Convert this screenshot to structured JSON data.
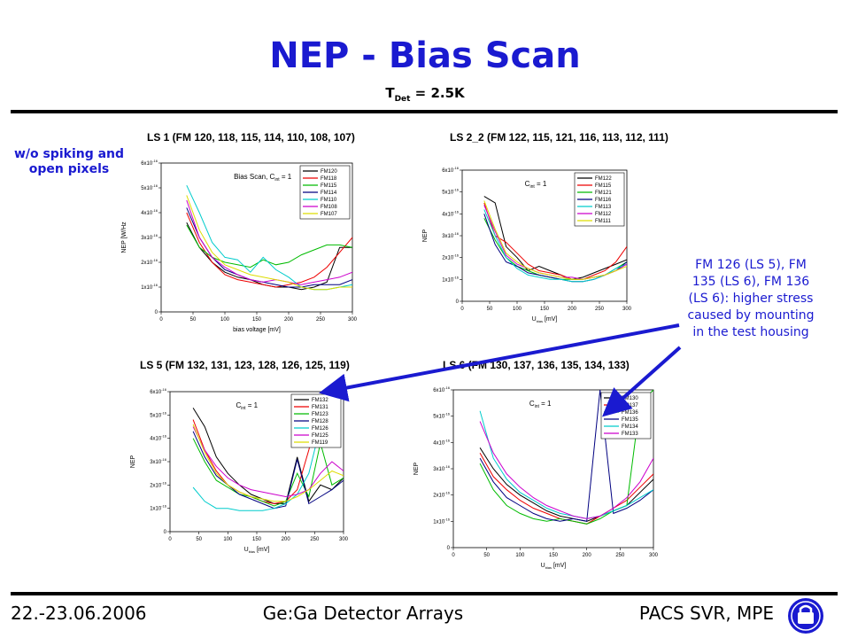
{
  "slide": {
    "title": "NEP - Bias Scan",
    "subtitle_main": "T",
    "subtitle_sub": "Det",
    "subtitle_rest": " = 2.5K",
    "left_note": "w/o spiking and open pixels",
    "right_note": "FM 126 (LS 5), FM 135 (LS 6), FM 136 (LS 6): higher stress caused by mounting in the test housing",
    "footer_date": "22.-23.06.2006",
    "footer_center": "Ge:Ga Detector Arrays",
    "footer_right": "PACS SVR, MPE",
    "colors": {
      "title": "#1a1ad0",
      "note": "#1a1ad0",
      "arrow": "#1a1ad0"
    }
  },
  "chart_data": [
    {
      "type": "line",
      "panel_title": "LS 1 (FM 120, 118, 115, 114, 110, 108, 107)",
      "title": "Bias Scan, C",
      "title_sub": "int",
      "title_rest": " = 1",
      "xlabel": "bias voltage [mV]",
      "ylabel": "NEP [W/Hz",
      "xlim": [
        0,
        300
      ],
      "ylim": [
        0,
        6
      ],
      "x_ticks": [
        "0",
        "50",
        "100",
        "150",
        "200",
        "250",
        "300"
      ],
      "y_ticks": [
        "0",
        "1x10",
        "2x10",
        "3x10",
        "4x10",
        "5x10",
        "6x10"
      ],
      "y_tick_exp": "-16",
      "legend_position": "top-right",
      "x": [
        40,
        60,
        80,
        100,
        120,
        140,
        160,
        180,
        200,
        220,
        240,
        260,
        280,
        300
      ],
      "series": [
        {
          "name": "FM120",
          "color": "#000000",
          "values": [
            3.6,
            2.6,
            2.0,
            1.6,
            1.4,
            1.3,
            1.1,
            1.0,
            1.0,
            0.9,
            1.0,
            1.2,
            2.6,
            2.6
          ]
        },
        {
          "name": "FM118",
          "color": "#ee0000",
          "values": [
            4.0,
            2.8,
            2.0,
            1.5,
            1.3,
            1.2,
            1.1,
            1.0,
            1.1,
            1.2,
            1.4,
            1.8,
            2.4,
            3.0
          ]
        },
        {
          "name": "FM115",
          "color": "#00bb00",
          "values": [
            3.5,
            2.6,
            2.2,
            2.0,
            1.9,
            1.8,
            2.1,
            1.9,
            2.0,
            2.3,
            2.5,
            2.7,
            2.7,
            2.6
          ]
        },
        {
          "name": "FM114",
          "color": "#000080",
          "values": [
            4.2,
            3.0,
            2.2,
            1.7,
            1.5,
            1.3,
            1.2,
            1.1,
            1.0,
            1.0,
            1.1,
            1.1,
            1.1,
            1.3
          ]
        },
        {
          "name": "FM110",
          "color": "#00cccc",
          "values": [
            5.1,
            4.0,
            2.8,
            2.2,
            2.1,
            1.6,
            2.2,
            1.7,
            1.4,
            1.0,
            0.9,
            0.9,
            1.0,
            1.1
          ]
        },
        {
          "name": "FM108",
          "color": "#cc00cc",
          "values": [
            4.5,
            3.0,
            2.2,
            1.8,
            1.5,
            1.3,
            1.2,
            1.3,
            1.2,
            1.1,
            1.2,
            1.3,
            1.4,
            1.6
          ]
        },
        {
          "name": "FM107",
          "color": "#dddd00",
          "values": [
            4.7,
            3.3,
            2.4,
            1.9,
            1.7,
            1.5,
            1.4,
            1.3,
            1.2,
            1.0,
            0.9,
            0.9,
            1.0,
            1.0
          ]
        }
      ]
    },
    {
      "type": "line",
      "panel_title": "LS 2_2 (FM 122, 115, 121, 116, 113, 112, 111)",
      "title": "C",
      "title_sub": "int",
      "title_rest": " = 1",
      "xlabel": "U",
      "xlabel_sub": "bias",
      "xlabel_rest": " [mV]",
      "ylabel": "NEP",
      "xlim": [
        0,
        300
      ],
      "ylim": [
        0,
        6
      ],
      "x_ticks": [
        "0",
        "50",
        "100",
        "150",
        "200",
        "250",
        "300"
      ],
      "y_ticks": [
        "0",
        "1x10",
        "2x10",
        "3x10",
        "4x10",
        "5x10",
        "6x10"
      ],
      "y_tick_exp": "-16",
      "legend_position": "top-right",
      "x": [
        40,
        60,
        80,
        100,
        120,
        140,
        160,
        180,
        200,
        220,
        240,
        260,
        280,
        300
      ],
      "series": [
        {
          "name": "FM122",
          "color": "#000000",
          "values": [
            4.8,
            4.5,
            2.5,
            2.0,
            1.4,
            1.6,
            1.4,
            1.2,
            1.0,
            1.1,
            1.3,
            1.5,
            1.7,
            1.9
          ]
        },
        {
          "name": "FM115",
          "color": "#ee0000",
          "values": [
            4.5,
            3.0,
            2.7,
            2.2,
            1.7,
            1.4,
            1.3,
            1.2,
            1.0,
            1.0,
            1.2,
            1.4,
            1.8,
            2.5
          ]
        },
        {
          "name": "FM121",
          "color": "#00bb00",
          "values": [
            3.8,
            2.8,
            2.0,
            1.6,
            1.4,
            1.2,
            1.1,
            1.0,
            1.0,
            1.0,
            1.1,
            1.2,
            1.5,
            1.8
          ]
        },
        {
          "name": "FM116",
          "color": "#000080",
          "values": [
            4.0,
            2.6,
            1.8,
            1.6,
            1.3,
            1.2,
            1.1,
            1.0,
            0.9,
            0.9,
            1.0,
            1.2,
            1.4,
            1.8
          ]
        },
        {
          "name": "FM113",
          "color": "#00cccc",
          "values": [
            4.2,
            3.0,
            2.0,
            1.5,
            1.2,
            1.1,
            1.0,
            1.0,
            0.9,
            0.9,
            1.0,
            1.2,
            1.5,
            1.7
          ]
        },
        {
          "name": "FM112",
          "color": "#cc00cc",
          "values": [
            4.4,
            3.2,
            2.1,
            1.7,
            1.5,
            1.3,
            1.2,
            1.1,
            1.1,
            1.0,
            1.1,
            1.2,
            1.4,
            1.7
          ]
        },
        {
          "name": "FM111",
          "color": "#dddd00",
          "values": [
            4.6,
            3.3,
            2.2,
            1.8,
            1.5,
            1.3,
            1.2,
            1.1,
            1.0,
            1.0,
            1.1,
            1.2,
            1.4,
            1.6
          ]
        }
      ]
    },
    {
      "type": "line",
      "panel_title": "LS 5 (FM 132, 131, 123, 128, 126, 125, 119)",
      "title": "C",
      "title_sub": "int",
      "title_rest": " = 1",
      "xlabel": "U",
      "xlabel_sub": "bias",
      "xlabel_rest": " [mV]",
      "ylabel": "NEP",
      "xlim": [
        0,
        300
      ],
      "ylim": [
        0,
        6
      ],
      "x_ticks": [
        "0",
        "50",
        "100",
        "150",
        "200",
        "250",
        "300"
      ],
      "y_ticks": [
        "0",
        "1x10",
        "2x10",
        "3x10",
        "4x10",
        "5x10",
        "6x10"
      ],
      "y_tick_exp": "-16",
      "legend_position": "top-right",
      "x": [
        40,
        60,
        80,
        100,
        120,
        140,
        160,
        180,
        200,
        220,
        240,
        260,
        280,
        300
      ],
      "series": [
        {
          "name": "FM132",
          "color": "#000000",
          "values": [
            5.3,
            4.5,
            3.2,
            2.5,
            2.0,
            1.6,
            1.4,
            1.2,
            1.2,
            3.2,
            1.3,
            2.0,
            1.8,
            2.3
          ]
        },
        {
          "name": "FM131",
          "color": "#ee0000",
          "values": [
            4.8,
            3.5,
            2.6,
            2.0,
            1.7,
            1.5,
            1.3,
            1.2,
            1.3,
            1.8,
            3.5,
            5.5,
            6.0,
            6.0
          ]
        },
        {
          "name": "FM123",
          "color": "#00bb00",
          "values": [
            4.0,
            3.0,
            2.2,
            1.9,
            1.6,
            1.5,
            1.3,
            1.1,
            1.3,
            2.5,
            1.5,
            3.8,
            2.0,
            2.3
          ]
        },
        {
          "name": "FM128",
          "color": "#000080",
          "values": [
            4.3,
            3.2,
            2.4,
            2.0,
            1.6,
            1.4,
            1.2,
            1.0,
            1.1,
            3.1,
            1.2,
            1.5,
            1.8,
            2.2
          ]
        },
        {
          "name": "FM126",
          "color": "#00cccc",
          "values": [
            1.9,
            1.3,
            1.0,
            1.0,
            0.9,
            0.9,
            0.9,
            1.0,
            1.2,
            1.6,
            2.5,
            4.5,
            6.0,
            6.0
          ]
        },
        {
          "name": "FM125",
          "color": "#cc00cc",
          "values": [
            4.5,
            3.5,
            2.8,
            2.3,
            2.0,
            1.8,
            1.7,
            1.6,
            1.5,
            1.6,
            1.8,
            2.5,
            3.0,
            2.6
          ]
        },
        {
          "name": "FM119",
          "color": "#dddd00",
          "values": [
            4.6,
            3.4,
            2.5,
            2.0,
            1.7,
            1.5,
            1.4,
            1.3,
            1.3,
            1.5,
            1.8,
            2.2,
            2.6,
            2.4
          ]
        }
      ]
    },
    {
      "type": "line",
      "panel_title": "LS 6 (FM 130, 137, 136, 135, 134, 133)",
      "title": "C",
      "title_sub": "int",
      "title_rest": " = 1",
      "xlabel": "U",
      "xlabel_sub": "bias",
      "xlabel_rest": " [mV]",
      "ylabel": "NEP",
      "xlim": [
        0,
        300
      ],
      "ylim": [
        0,
        6
      ],
      "x_ticks": [
        "0",
        "50",
        "100",
        "150",
        "200",
        "250",
        "300"
      ],
      "y_ticks": [
        "0",
        "1x10",
        "2x10",
        "3x10",
        "4x10",
        "5x10",
        "6x10"
      ],
      "y_tick_exp": "-16",
      "legend_position": "top-right",
      "x": [
        40,
        60,
        80,
        100,
        120,
        140,
        160,
        180,
        200,
        220,
        240,
        260,
        280,
        300
      ],
      "series": [
        {
          "name": "FM130",
          "color": "#000000",
          "values": [
            3.8,
            3.0,
            2.4,
            2.0,
            1.7,
            1.4,
            1.2,
            1.1,
            1.0,
            1.2,
            1.4,
            1.6,
            2.1,
            2.6
          ]
        },
        {
          "name": "FM137",
          "color": "#ee0000",
          "values": [
            3.6,
            2.7,
            2.2,
            1.8,
            1.5,
            1.3,
            1.1,
            1.0,
            0.9,
            1.2,
            1.5,
            1.8,
            2.3,
            2.8
          ]
        },
        {
          "name": "FM136",
          "color": "#00bb00",
          "values": [
            3.2,
            2.2,
            1.6,
            1.3,
            1.1,
            1.0,
            1.1,
            1.0,
            0.9,
            1.1,
            1.4,
            1.6,
            5.5,
            6.0
          ]
        },
        {
          "name": "FM135",
          "color": "#000080",
          "values": [
            3.4,
            2.5,
            1.9,
            1.6,
            1.3,
            1.1,
            1.0,
            1.1,
            1.0,
            6.0,
            1.3,
            1.5,
            1.8,
            2.2
          ]
        },
        {
          "name": "FM134",
          "color": "#00cccc",
          "values": [
            5.2,
            3.4,
            2.6,
            2.1,
            1.8,
            1.5,
            1.3,
            1.2,
            1.1,
            1.2,
            1.4,
            1.6,
            1.9,
            2.2
          ]
        },
        {
          "name": "FM133",
          "color": "#cc00cc",
          "values": [
            4.8,
            3.6,
            2.8,
            2.3,
            1.9,
            1.6,
            1.4,
            1.2,
            1.1,
            1.2,
            1.5,
            1.9,
            2.5,
            3.4
          ]
        }
      ]
    }
  ]
}
